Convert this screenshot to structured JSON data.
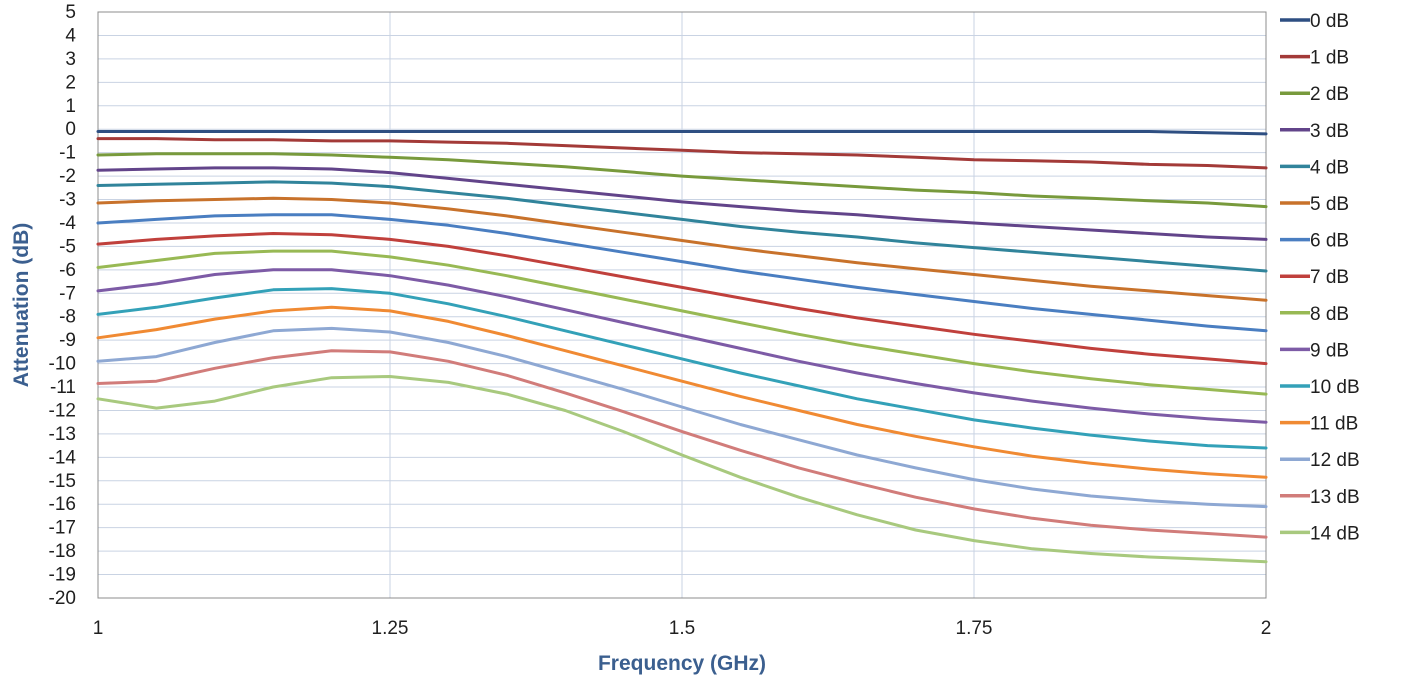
{
  "chart_data": {
    "type": "line",
    "xlabel": "Frequency (GHz)",
    "ylabel": "Attenuation (dB)",
    "xlim": [
      1,
      2
    ],
    "ylim": [
      -20,
      5
    ],
    "x_ticks": [
      1,
      1.25,
      1.5,
      1.75,
      2
    ],
    "x_tick_labels": [
      "1",
      "1.25",
      "1.5",
      "1.75",
      "2"
    ],
    "y_ticks": [
      5,
      4,
      3,
      2,
      1,
      0,
      -1,
      -2,
      -3,
      -4,
      -5,
      -6,
      -7,
      -8,
      -9,
      -10,
      -11,
      -12,
      -13,
      -14,
      -15,
      -16,
      -17,
      -18,
      -19,
      -20
    ],
    "grid": true,
    "legend_position": "right",
    "x": [
      1,
      1.05,
      1.1,
      1.15,
      1.2,
      1.25,
      1.3,
      1.35,
      1.4,
      1.45,
      1.5,
      1.55,
      1.6,
      1.65,
      1.7,
      1.75,
      1.8,
      1.85,
      1.9,
      1.95,
      2
    ],
    "series": [
      {
        "name": "0 dB",
        "color": "#2e4f82",
        "values": [
          -0.1,
          -0.1,
          -0.1,
          -0.1,
          -0.1,
          -0.1,
          -0.1,
          -0.1,
          -0.1,
          -0.1,
          -0.1,
          -0.1,
          -0.1,
          -0.1,
          -0.1,
          -0.1,
          -0.1,
          -0.1,
          -0.1,
          -0.15,
          -0.2
        ]
      },
      {
        "name": "1 dB",
        "color": "#a33a38",
        "values": [
          -0.4,
          -0.4,
          -0.45,
          -0.45,
          -0.5,
          -0.5,
          -0.55,
          -0.6,
          -0.7,
          -0.8,
          -0.9,
          -1.0,
          -1.05,
          -1.1,
          -1.2,
          -1.3,
          -1.35,
          -1.4,
          -1.5,
          -1.55,
          -1.65
        ]
      },
      {
        "name": "2 dB",
        "color": "#789a3c",
        "values": [
          -1.1,
          -1.05,
          -1.05,
          -1.05,
          -1.1,
          -1.2,
          -1.3,
          -1.45,
          -1.6,
          -1.8,
          -2.0,
          -2.15,
          -2.3,
          -2.45,
          -2.6,
          -2.7,
          -2.85,
          -2.95,
          -3.05,
          -3.15,
          -3.3
        ]
      },
      {
        "name": "3 dB",
        "color": "#62448a",
        "values": [
          -1.75,
          -1.7,
          -1.65,
          -1.65,
          -1.7,
          -1.85,
          -2.1,
          -2.35,
          -2.6,
          -2.85,
          -3.1,
          -3.3,
          -3.5,
          -3.65,
          -3.85,
          -4.0,
          -4.15,
          -4.3,
          -4.45,
          -4.6,
          -4.7
        ]
      },
      {
        "name": "4 dB",
        "color": "#31849b",
        "values": [
          -2.4,
          -2.35,
          -2.3,
          -2.25,
          -2.3,
          -2.45,
          -2.7,
          -2.95,
          -3.25,
          -3.55,
          -3.85,
          -4.15,
          -4.4,
          -4.6,
          -4.85,
          -5.05,
          -5.25,
          -5.45,
          -5.65,
          -5.85,
          -6.05
        ]
      },
      {
        "name": "5 dB",
        "color": "#c8722b",
        "values": [
          -3.15,
          -3.05,
          -3.0,
          -2.95,
          -3.0,
          -3.15,
          -3.4,
          -3.7,
          -4.05,
          -4.4,
          -4.75,
          -5.1,
          -5.4,
          -5.7,
          -5.95,
          -6.2,
          -6.45,
          -6.7,
          -6.9,
          -7.1,
          -7.3
        ]
      },
      {
        "name": "6 dB",
        "color": "#4a7ec1",
        "values": [
          -4.0,
          -3.85,
          -3.7,
          -3.65,
          -3.65,
          -3.85,
          -4.1,
          -4.45,
          -4.85,
          -5.25,
          -5.65,
          -6.05,
          -6.4,
          -6.75,
          -7.05,
          -7.35,
          -7.65,
          -7.9,
          -8.15,
          -8.4,
          -8.6
        ]
      },
      {
        "name": "7 dB",
        "color": "#c0403c",
        "values": [
          -4.9,
          -4.7,
          -4.55,
          -4.45,
          -4.5,
          -4.7,
          -5.0,
          -5.4,
          -5.85,
          -6.3,
          -6.75,
          -7.2,
          -7.65,
          -8.05,
          -8.4,
          -8.75,
          -9.05,
          -9.35,
          -9.6,
          -9.8,
          -10.0
        ]
      },
      {
        "name": "8 dB",
        "color": "#98b954",
        "values": [
          -5.9,
          -5.6,
          -5.3,
          -5.2,
          -5.2,
          -5.45,
          -5.8,
          -6.25,
          -6.75,
          -7.25,
          -7.75,
          -8.25,
          -8.75,
          -9.2,
          -9.6,
          -10.0,
          -10.35,
          -10.65,
          -10.9,
          -11.1,
          -11.3
        ]
      },
      {
        "name": "9 dB",
        "color": "#7d5ba6",
        "values": [
          -6.9,
          -6.6,
          -6.2,
          -6.0,
          -6.0,
          -6.25,
          -6.65,
          -7.15,
          -7.7,
          -8.25,
          -8.8,
          -9.35,
          -9.9,
          -10.4,
          -10.85,
          -11.25,
          -11.6,
          -11.9,
          -12.15,
          -12.35,
          -12.5
        ]
      },
      {
        "name": "10 dB",
        "color": "#33a1b8",
        "values": [
          -7.9,
          -7.6,
          -7.2,
          -6.85,
          -6.8,
          -7.0,
          -7.45,
          -8.0,
          -8.6,
          -9.2,
          -9.8,
          -10.4,
          -10.95,
          -11.5,
          -11.95,
          -12.4,
          -12.75,
          -13.05,
          -13.3,
          -13.5,
          -13.6
        ]
      },
      {
        "name": "11 dB",
        "color": "#f08a33",
        "values": [
          -8.9,
          -8.55,
          -8.1,
          -7.75,
          -7.6,
          -7.75,
          -8.2,
          -8.8,
          -9.45,
          -10.1,
          -10.75,
          -11.4,
          -12.0,
          -12.6,
          -13.1,
          -13.55,
          -13.95,
          -14.25,
          -14.5,
          -14.7,
          -14.85
        ]
      },
      {
        "name": "12 dB",
        "color": "#8ea8d3",
        "values": [
          -9.9,
          -9.7,
          -9.1,
          -8.6,
          -8.5,
          -8.65,
          -9.1,
          -9.7,
          -10.4,
          -11.1,
          -11.85,
          -12.6,
          -13.25,
          -13.9,
          -14.45,
          -14.95,
          -15.35,
          -15.65,
          -15.85,
          -16.0,
          -16.1
        ]
      },
      {
        "name": "13 dB",
        "color": "#d17c7a",
        "values": [
          -10.85,
          -10.75,
          -10.2,
          -9.75,
          -9.45,
          -9.5,
          -9.9,
          -10.5,
          -11.25,
          -12.05,
          -12.9,
          -13.7,
          -14.45,
          -15.1,
          -15.7,
          -16.2,
          -16.6,
          -16.9,
          -17.1,
          -17.25,
          -17.4
        ]
      },
      {
        "name": "14 dB",
        "color": "#a8c97e",
        "values": [
          -11.5,
          -11.9,
          -11.6,
          -11.0,
          -10.6,
          -10.55,
          -10.8,
          -11.3,
          -12.0,
          -12.9,
          -13.9,
          -14.85,
          -15.7,
          -16.45,
          -17.1,
          -17.55,
          -17.9,
          -18.1,
          -18.25,
          -18.35,
          -18.45
        ]
      }
    ]
  }
}
